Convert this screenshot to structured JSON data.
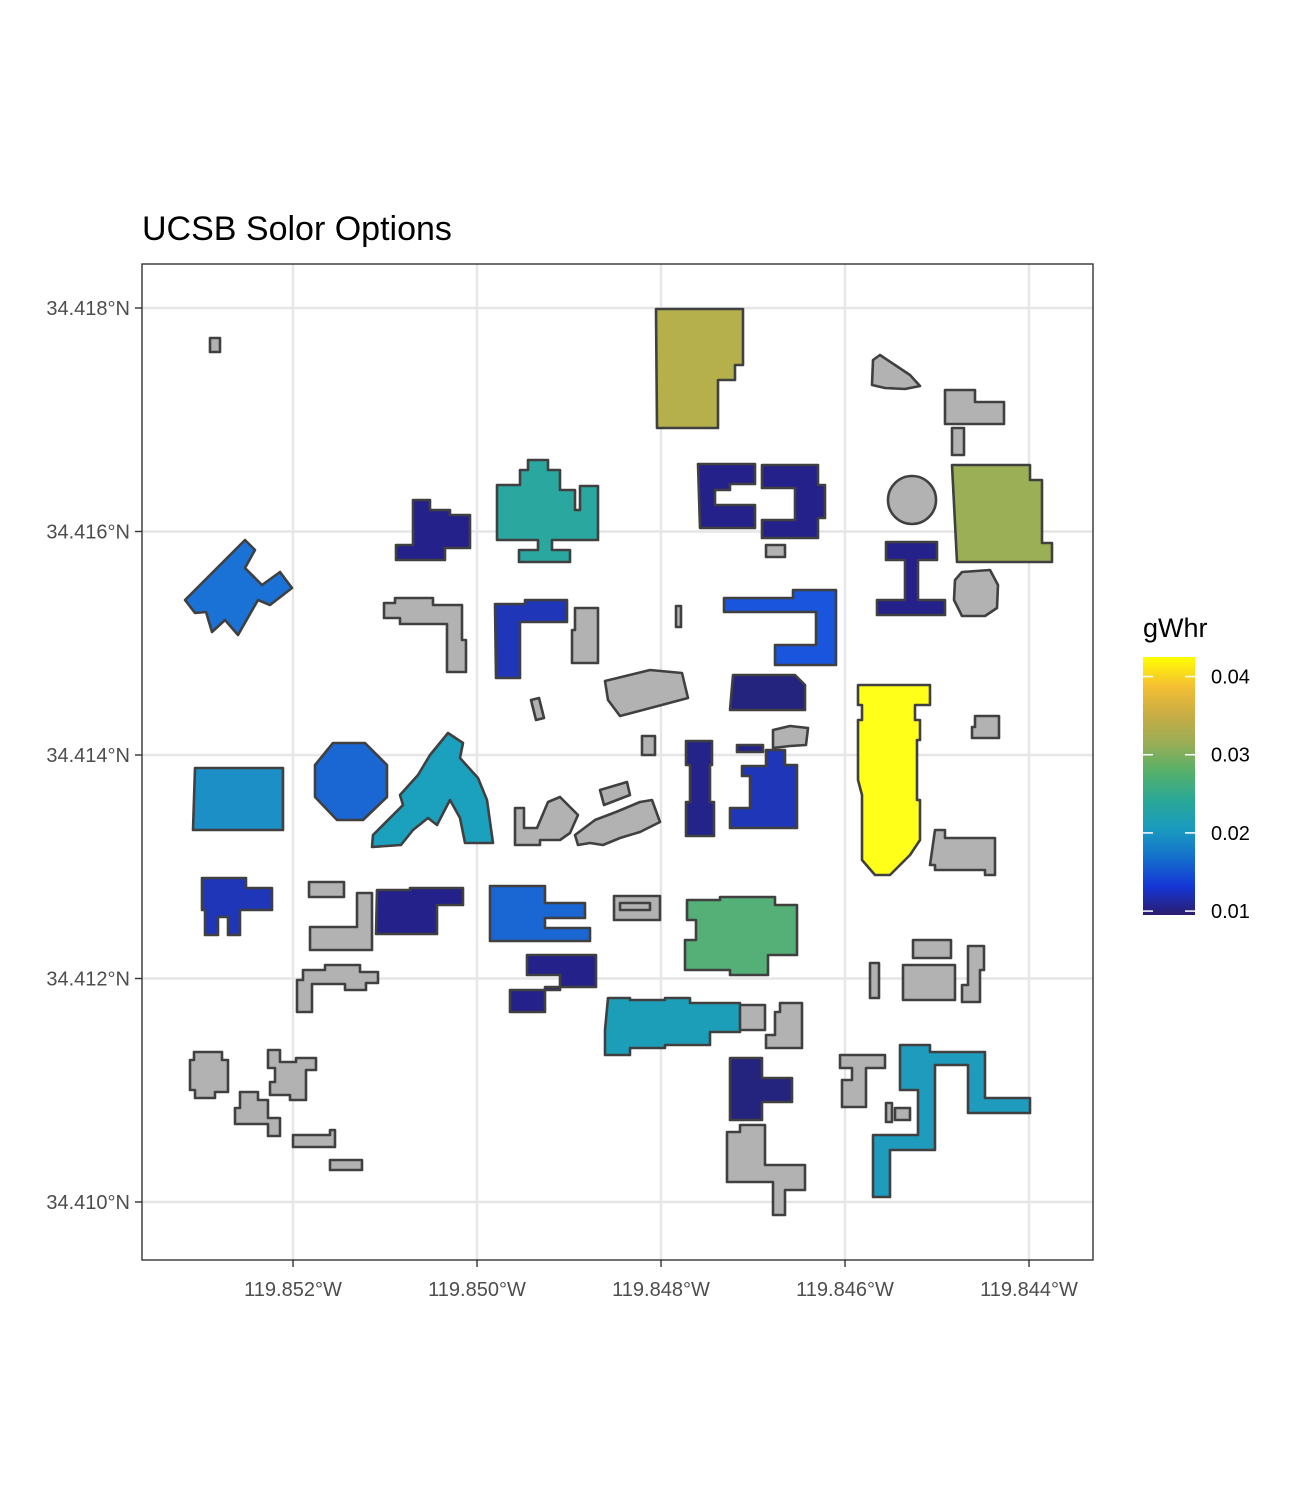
{
  "title": "UCSB Solor Options",
  "x_ticks": [
    {
      "value": -119.852,
      "label": "119.852°W"
    },
    {
      "value": -119.85,
      "label": "119.850°W"
    },
    {
      "value": -119.848,
      "label": "119.848°W"
    },
    {
      "value": -119.846,
      "label": "119.846°W"
    },
    {
      "value": -119.844,
      "label": "119.844°W"
    }
  ],
  "y_ticks": [
    {
      "value": 34.418,
      "label": "34.418°N"
    },
    {
      "value": 34.416,
      "label": "34.416°N"
    },
    {
      "value": 34.414,
      "label": "34.414°N"
    },
    {
      "value": 34.412,
      "label": "34.412°N"
    },
    {
      "value": 34.41,
      "label": "34.410°N"
    }
  ],
  "legend": {
    "title": "gWhr",
    "labels": [
      {
        "value": 0.04,
        "label": "0.04"
      },
      {
        "value": 0.03,
        "label": "0.03"
      },
      {
        "value": 0.02,
        "label": "0.02"
      },
      {
        "value": 0.01,
        "label": "0.01"
      }
    ],
    "range": [
      0.0095,
      0.0425
    ],
    "colors": [
      "#2b1d6e",
      "#1536d6",
      "#1570cc",
      "#1a9bbf",
      "#2aa896",
      "#55b06a",
      "#9aad55",
      "#c9ad45",
      "#f5c031",
      "#ffff00"
    ]
  },
  "colors": {
    "no_data": "#b2b2b2",
    "outline": "#404040"
  }
}
